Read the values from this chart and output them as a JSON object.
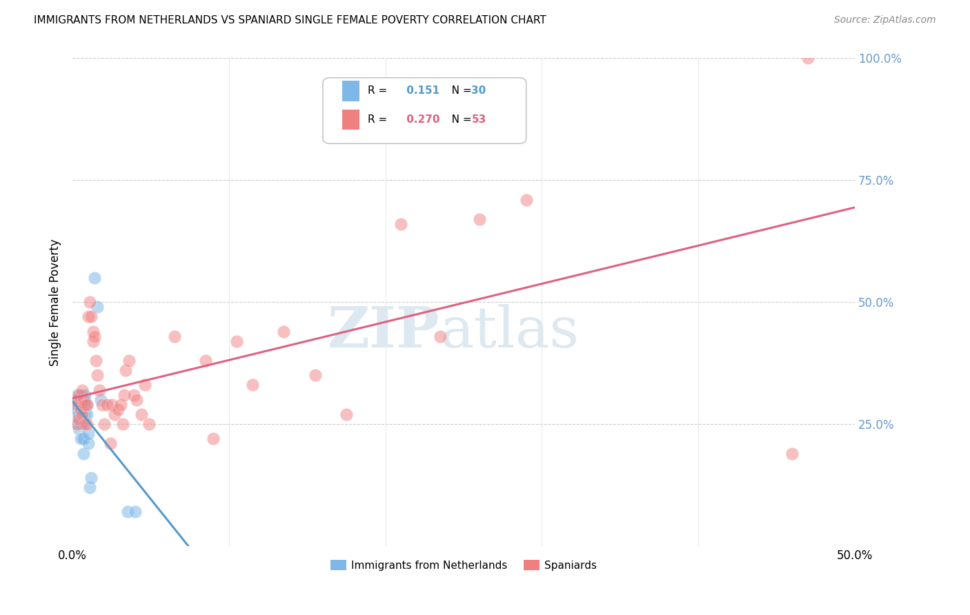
{
  "title": "IMMIGRANTS FROM NETHERLANDS VS SPANIARD SINGLE FEMALE POVERTY CORRELATION CHART",
  "source": "Source: ZipAtlas.com",
  "ylabel": "Single Female Poverty",
  "legend_label_1": "Immigrants from Netherlands",
  "legend_label_2": "Spaniards",
  "R1": 0.151,
  "N1": 30,
  "R2": 0.27,
  "N2": 53,
  "xlim": [
    0.0,
    0.5
  ],
  "ylim": [
    0.0,
    1.0
  ],
  "xticks": [
    0.0,
    0.5
  ],
  "xticklabels": [
    "0.0%",
    "50.0%"
  ],
  "yticks": [
    0.25,
    0.5,
    0.75,
    1.0
  ],
  "yticklabels": [
    "25.0%",
    "50.0%",
    "75.0%",
    "100.0%"
  ],
  "color_netherlands": "#7EB8E8",
  "color_spaniards": "#F08080",
  "color_line_netherlands": "#5599cc",
  "color_line_spaniards": "#e06080",
  "color_ytick_labels": "#6699CC",
  "background_color": "#ffffff",
  "watermark_zip": "ZIP",
  "watermark_atlas": "atlas",
  "watermark_color": "#dde8f0",
  "netherlands_x": [
    0.002,
    0.002,
    0.003,
    0.003,
    0.003,
    0.004,
    0.004,
    0.004,
    0.005,
    0.005,
    0.005,
    0.005,
    0.006,
    0.006,
    0.007,
    0.007,
    0.008,
    0.008,
    0.008,
    0.009,
    0.009,
    0.01,
    0.01,
    0.011,
    0.012,
    0.014,
    0.016,
    0.018,
    0.035,
    0.04
  ],
  "netherlands_y": [
    0.27,
    0.29,
    0.25,
    0.28,
    0.31,
    0.24,
    0.27,
    0.3,
    0.22,
    0.25,
    0.28,
    0.31,
    0.22,
    0.25,
    0.19,
    0.22,
    0.27,
    0.3,
    0.31,
    0.27,
    0.29,
    0.21,
    0.23,
    0.12,
    0.14,
    0.55,
    0.49,
    0.3,
    0.07,
    0.07
  ],
  "spaniards_x": [
    0.002,
    0.003,
    0.003,
    0.004,
    0.004,
    0.005,
    0.006,
    0.006,
    0.007,
    0.008,
    0.008,
    0.009,
    0.009,
    0.01,
    0.011,
    0.012,
    0.013,
    0.013,
    0.014,
    0.015,
    0.016,
    0.017,
    0.019,
    0.02,
    0.022,
    0.024,
    0.025,
    0.027,
    0.029,
    0.031,
    0.032,
    0.033,
    0.034,
    0.036,
    0.039,
    0.041,
    0.044,
    0.046,
    0.049,
    0.065,
    0.085,
    0.09,
    0.105,
    0.115,
    0.135,
    0.155,
    0.175,
    0.21,
    0.235,
    0.26,
    0.29,
    0.46,
    0.47
  ],
  "spaniards_y": [
    0.3,
    0.25,
    0.29,
    0.26,
    0.31,
    0.28,
    0.27,
    0.32,
    0.3,
    0.25,
    0.29,
    0.25,
    0.29,
    0.47,
    0.5,
    0.47,
    0.42,
    0.44,
    0.43,
    0.38,
    0.35,
    0.32,
    0.29,
    0.25,
    0.29,
    0.21,
    0.29,
    0.27,
    0.28,
    0.29,
    0.25,
    0.31,
    0.36,
    0.38,
    0.31,
    0.3,
    0.27,
    0.33,
    0.25,
    0.43,
    0.38,
    0.22,
    0.42,
    0.33,
    0.44,
    0.35,
    0.27,
    0.66,
    0.43,
    0.67,
    0.71,
    0.19,
    1.0
  ]
}
